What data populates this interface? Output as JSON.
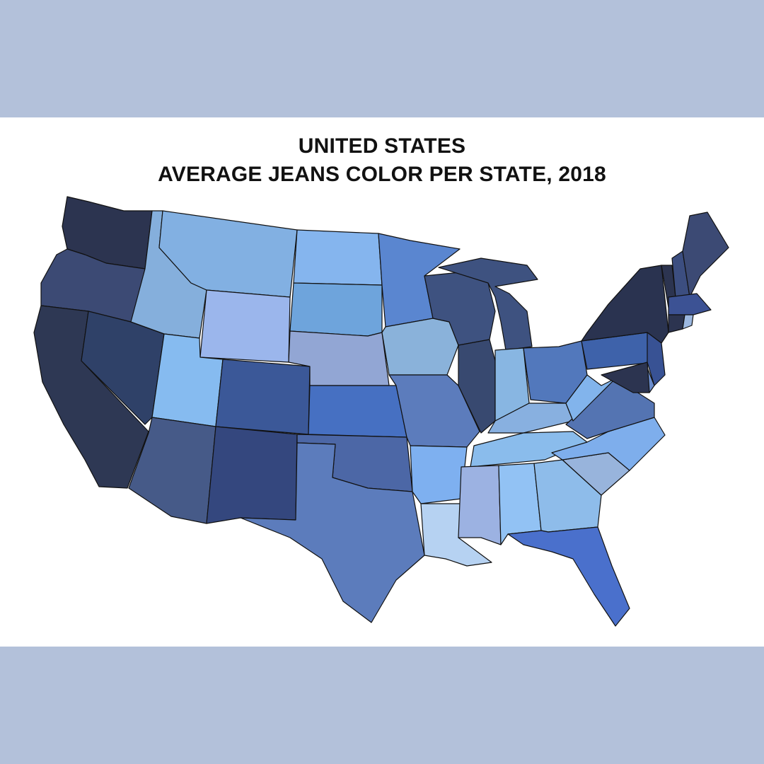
{
  "title_line1": "UNITED STATES",
  "title_line2": "AVERAGE JEANS COLOR PER STATE, 2018",
  "colors": {
    "band": "#b3c1da",
    "panel": "#ffffff",
    "border": "#111111"
  },
  "states": [
    {
      "id": "WA",
      "fill": "#2c3450"
    },
    {
      "id": "OR",
      "fill": "#3c4a74"
    },
    {
      "id": "CA",
      "fill": "#2e3854"
    },
    {
      "id": "NV",
      "fill": "#2f4168"
    },
    {
      "id": "ID",
      "fill": "#85afdc"
    },
    {
      "id": "MT",
      "fill": "#82b0e2"
    },
    {
      "id": "WY",
      "fill": "#9bb6ec"
    },
    {
      "id": "UT",
      "fill": "#86bbf0"
    },
    {
      "id": "AZ",
      "fill": "#465a88"
    },
    {
      "id": "CO",
      "fill": "#3b5898"
    },
    {
      "id": "NM",
      "fill": "#34477e"
    },
    {
      "id": "ND",
      "fill": "#85b5ee"
    },
    {
      "id": "SD",
      "fill": "#6ea4dc"
    },
    {
      "id": "NE",
      "fill": "#92a6d4"
    },
    {
      "id": "KS",
      "fill": "#4670c2"
    },
    {
      "id": "OK",
      "fill": "#4c67a6"
    },
    {
      "id": "TX",
      "fill": "#5c7cbc"
    },
    {
      "id": "MN",
      "fill": "#5a86d0"
    },
    {
      "id": "IA",
      "fill": "#8ab2da"
    },
    {
      "id": "MO",
      "fill": "#5c7cbc"
    },
    {
      "id": "AR",
      "fill": "#7eb0f0"
    },
    {
      "id": "LA",
      "fill": "#b6d2f2"
    },
    {
      "id": "WI",
      "fill": "#3e5280"
    },
    {
      "id": "IL",
      "fill": "#384970"
    },
    {
      "id": "MI",
      "fill": "#3e5280"
    },
    {
      "id": "IN",
      "fill": "#88b6e2"
    },
    {
      "id": "OH",
      "fill": "#5278bc"
    },
    {
      "id": "KY",
      "fill": "#88b0e0"
    },
    {
      "id": "TN",
      "fill": "#8abcec"
    },
    {
      "id": "MS",
      "fill": "#9cb2e2"
    },
    {
      "id": "AL",
      "fill": "#92c2f4"
    },
    {
      "id": "GA",
      "fill": "#8ebcea"
    },
    {
      "id": "FL",
      "fill": "#4a70cc"
    },
    {
      "id": "SC",
      "fill": "#98b4dc"
    },
    {
      "id": "NC",
      "fill": "#7eaeec"
    },
    {
      "id": "VA",
      "fill": "#5474b2"
    },
    {
      "id": "WV",
      "fill": "#82b4ec"
    },
    {
      "id": "PA",
      "fill": "#3e62aa"
    },
    {
      "id": "NY",
      "fill": "#2a3350"
    },
    {
      "id": "NJ",
      "fill": "#385294"
    },
    {
      "id": "DE",
      "fill": "#6a8ccc"
    },
    {
      "id": "MD",
      "fill": "#2c3450"
    },
    {
      "id": "VT",
      "fill": "#2c3450"
    },
    {
      "id": "NH",
      "fill": "#3c4e80"
    },
    {
      "id": "ME",
      "fill": "#3c4a74"
    },
    {
      "id": "MA",
      "fill": "#3c5294"
    },
    {
      "id": "CT",
      "fill": "#2c3450"
    },
    {
      "id": "RI",
      "fill": "#9cb8e0"
    }
  ]
}
